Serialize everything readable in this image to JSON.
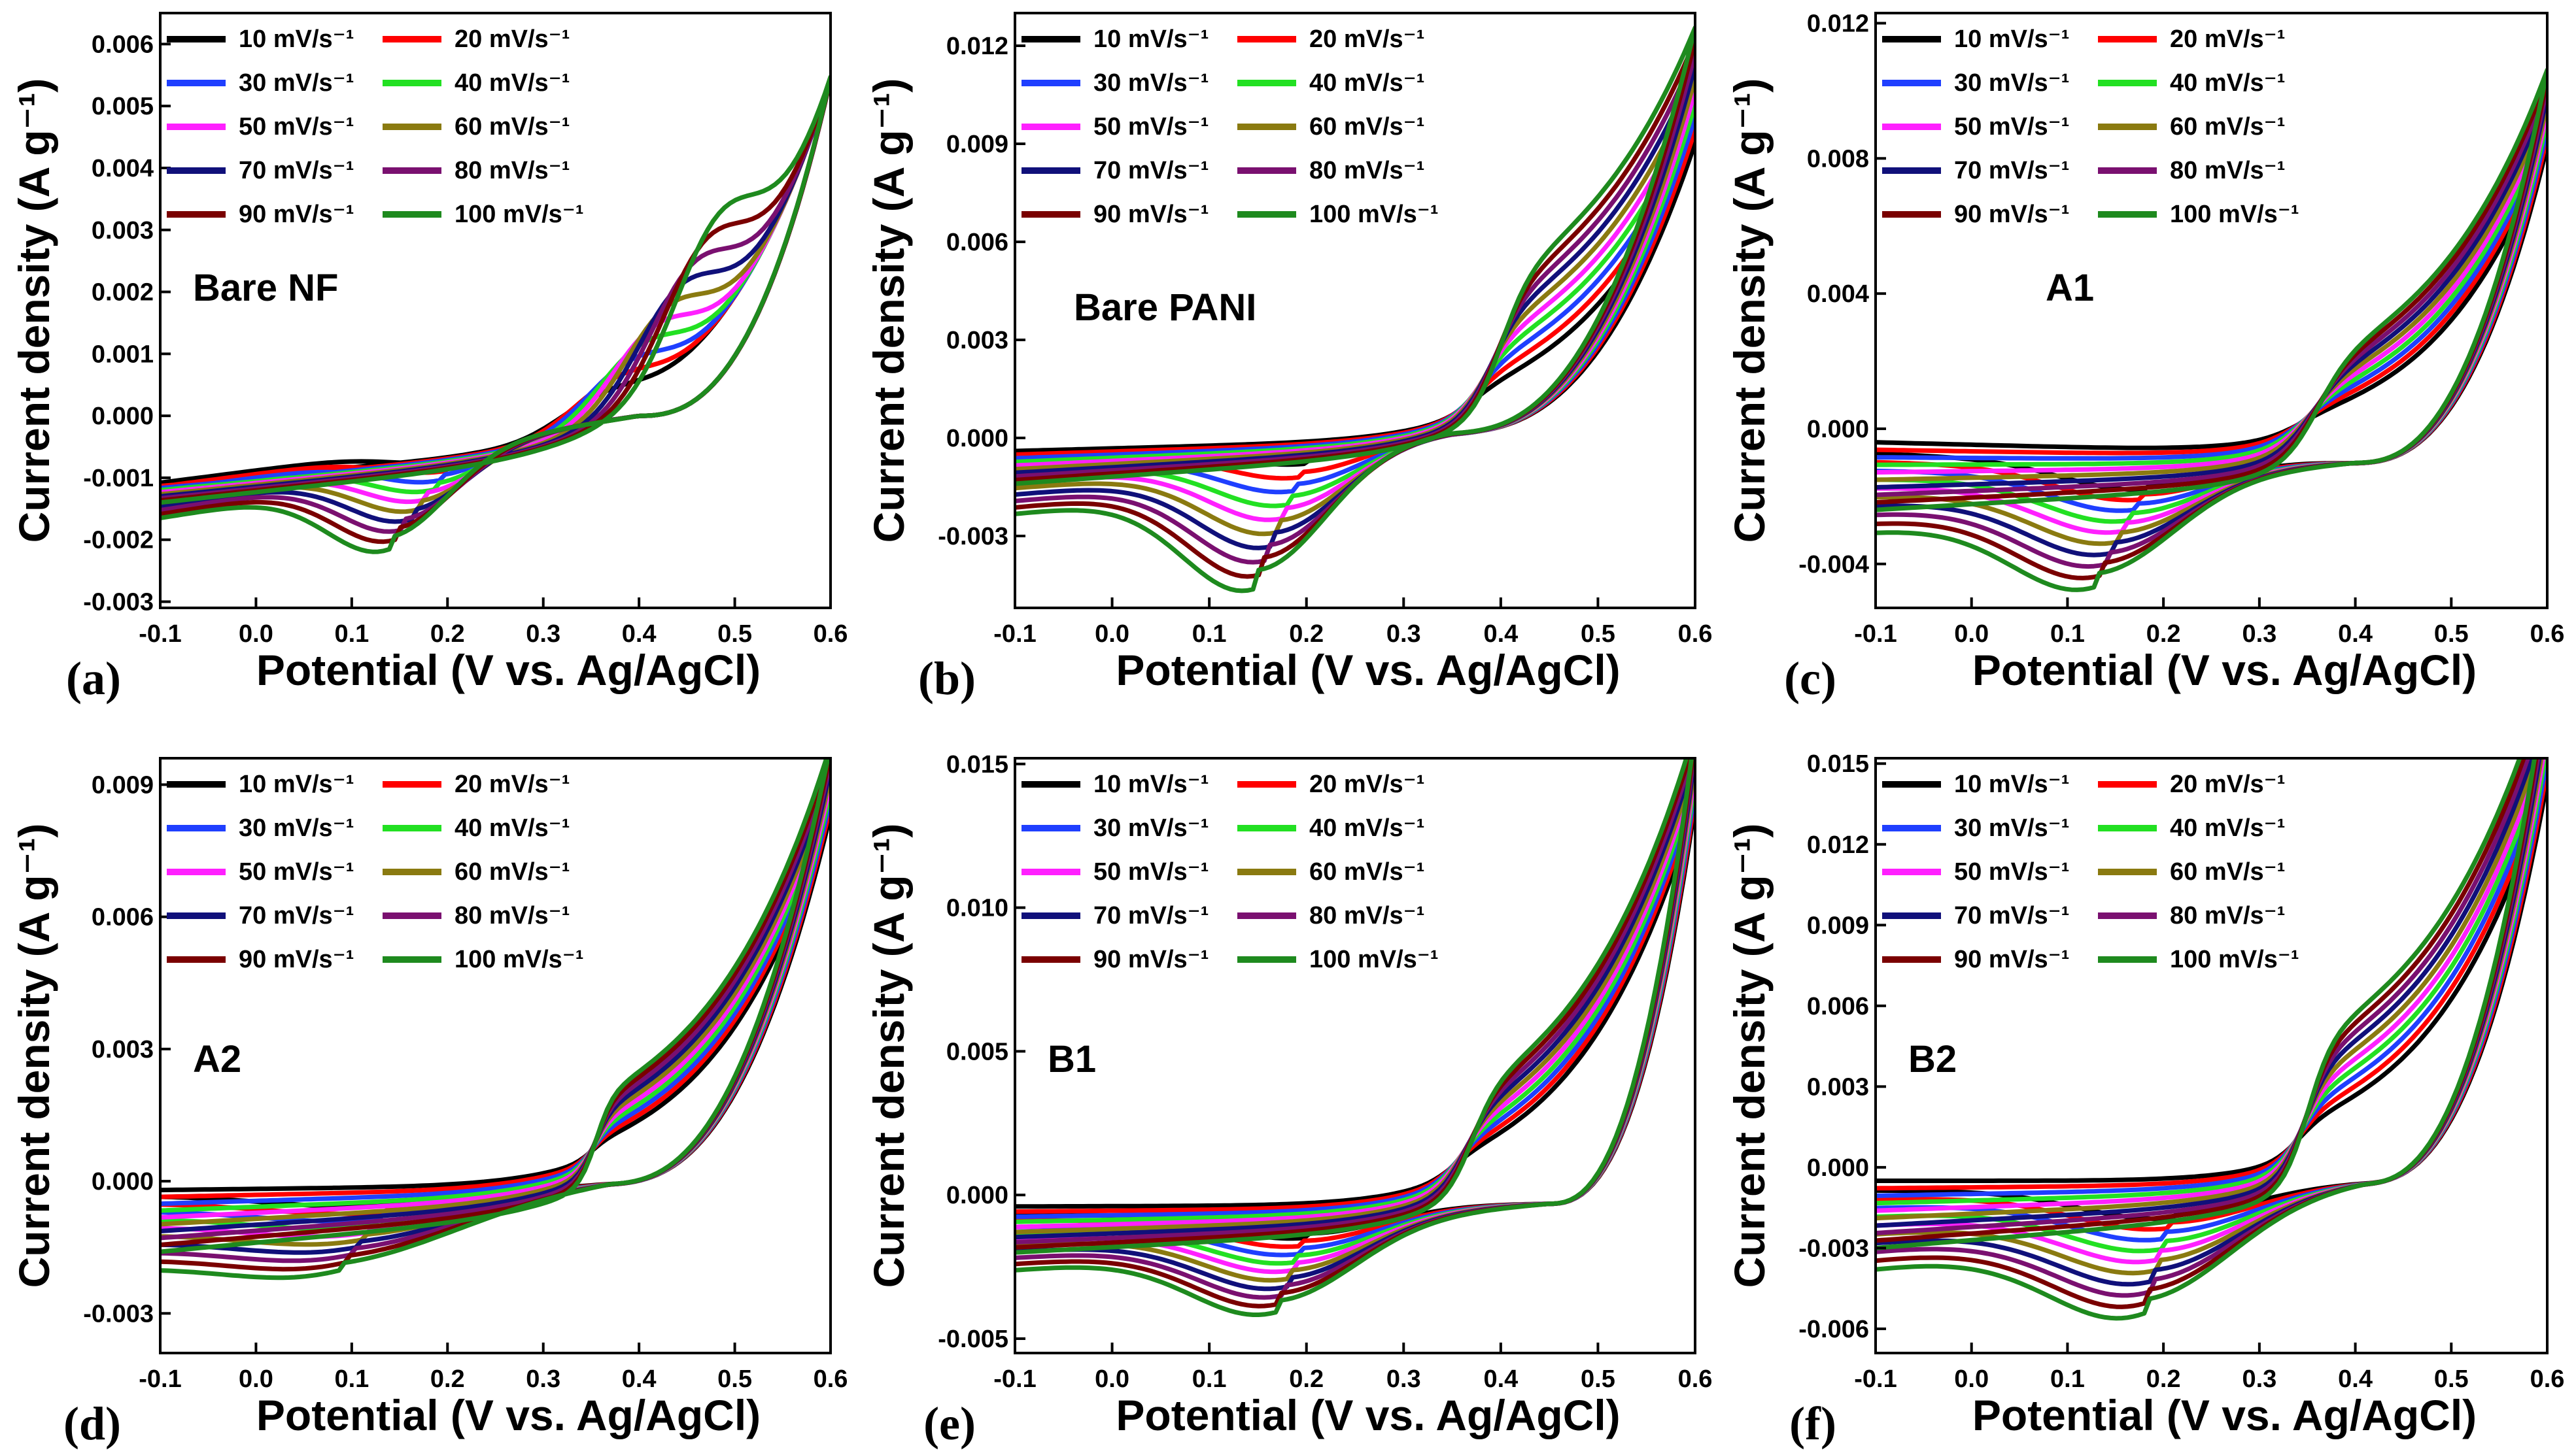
{
  "figure": {
    "xlabel": "Potential (V vs. Ag/AgCl)",
    "ylabel": "Current density (A g⁻¹)",
    "legend_labels": [
      "10 mV/s⁻¹",
      "20 mV/s⁻¹",
      "30 mV/s⁻¹",
      "40 mV/s⁻¹",
      "50 mV/s⁻¹",
      "60 mV/s⁻¹",
      "70 mV/s⁻¹",
      "80 mV/s⁻¹",
      "90 mV/s⁻¹",
      "100 mV/s⁻¹"
    ],
    "series_colors": [
      "#000000",
      "#ff0000",
      "#1f3fff",
      "#22e022",
      "#ff20ff",
      "#8a7a10",
      "#10107a",
      "#7a1070",
      "#7a0000",
      "#1e8a1e"
    ]
  },
  "chart_data": [
    {
      "type": "line",
      "panel_label": "(a)",
      "sample": "Bare NF",
      "xlim": [
        -0.1,
        0.6
      ],
      "xticks": [
        "-0.1",
        "0.0",
        "0.1",
        "0.2",
        "0.3",
        "0.4",
        "0.5",
        "0.6"
      ],
      "ylim": [
        -0.0031,
        0.0065
      ],
      "yticks": [
        "-0.003",
        "-0.002",
        "-0.001",
        "0.000",
        "0.001",
        "0.002",
        "0.003",
        "0.004",
        "0.005",
        "0.006"
      ],
      "ytick_values": [
        -0.003,
        -0.002,
        -0.001,
        0,
        0.001,
        0.002,
        0.003,
        0.004,
        0.005,
        0.006
      ],
      "model": {
        "c_start": -0.0012,
        "c_slope": 0.00021,
        "c_prob": 0.0014,
        "a_end": 0.0062,
        "a_prob": 0.0011,
        "a_base_frac": 0.09,
        "ox_pos": 0.36,
        "ox_shift": 0.12,
        "ox_amp_lo": 0.0004,
        "ox_amp_hi": 0.0018,
        "ox_w": 0.045,
        "ox_shape": "peak",
        "red_pos": 0.21,
        "red_shift": -0.07,
        "red_amp_lo": 0.0003,
        "red_amp_hi": 0.0013,
        "red_w": 0.06,
        "red_shape": "peak",
        "cross": 0.4,
        "cross_val": 0.0,
        "start_lo": -0.0011,
        "start_hi": -0.0014
      }
    },
    {
      "type": "line",
      "panel_label": "(b)",
      "sample": "Bare PANI",
      "xlim": [
        -0.1,
        0.6
      ],
      "xticks": [
        "-0.1",
        "0.0",
        "0.1",
        "0.2",
        "0.3",
        "0.4",
        "0.5",
        "0.6"
      ],
      "ylim": [
        -0.0052,
        0.013
      ],
      "yticks": [
        "-0.003",
        "0.000",
        "0.003",
        "0.006",
        "0.009",
        "0.012"
      ],
      "ytick_values": [
        -0.003,
        0,
        0.003,
        0.006,
        0.009,
        0.012
      ],
      "model": {
        "c_start": -0.001,
        "c_slope": 0.0001,
        "c_prob": 0.0012,
        "a_end": 0.0088,
        "a_prob": 0.0014,
        "a_base_frac": 0.09,
        "ox_pos": 0.37,
        "ox_shift": 0.03,
        "ox_amp_lo": 0.0008,
        "ox_amp_hi": 0.0042,
        "ox_w": 0.035,
        "ox_shape": "plateau",
        "red_pos": 0.2,
        "red_shift": -0.05,
        "red_amp_lo": 0.0007,
        "red_amp_hi": 0.0036,
        "red_w": 0.07,
        "red_shape": "peak",
        "cross": 0.35,
        "cross_val": 0.0002,
        "start_lo": -0.0004,
        "start_hi": -0.0014
      }
    },
    {
      "type": "line",
      "panel_label": "(c)",
      "sample": "A1",
      "xlim": [
        -0.1,
        0.6
      ],
      "xticks": [
        "-0.1",
        "0.0",
        "0.1",
        "0.2",
        "0.3",
        "0.4",
        "0.5",
        "0.6"
      ],
      "ylim": [
        -0.0053,
        0.0123
      ],
      "yticks": [
        "-0.004",
        "0.000",
        "0.004",
        "0.008",
        "0.012"
      ],
      "ytick_values": [
        -0.004,
        0,
        0.004,
        0.008,
        0.012
      ],
      "model": {
        "c_start": -0.0012,
        "c_slope": 0.0003,
        "c_prob": 0.0015,
        "a_end": 0.0098,
        "a_prob": 0.0016,
        "a_base_frac": 0.12,
        "ox_pos": 0.34,
        "ox_shift": 0.02,
        "ox_amp_lo": 0.0006,
        "ox_amp_hi": 0.003,
        "ox_w": 0.04,
        "ox_shape": "plateau",
        "red_pos": 0.18,
        "red_shift": -0.05,
        "red_amp_lo": 0.0009,
        "red_amp_hi": 0.0026,
        "red_w": 0.08,
        "red_shape": "peak",
        "cross": 0.4,
        "cross_val": -0.001,
        "start_lo": -0.0004,
        "start_hi": -0.0024
      }
    },
    {
      "type": "line",
      "panel_label": "(d)",
      "sample": "A2",
      "xlim": [
        -0.1,
        0.6
      ],
      "xticks": [
        "-0.1",
        "0.0",
        "0.1",
        "0.2",
        "0.3",
        "0.4",
        "0.5",
        "0.6"
      ],
      "ylim": [
        -0.0039,
        0.0096
      ],
      "yticks": [
        "-0.003",
        "0.000",
        "0.003",
        "0.006",
        "0.009"
      ],
      "ytick_values": [
        -0.003,
        0,
        0.003,
        0.006,
        0.009
      ],
      "model": {
        "c_start": -0.001,
        "c_slope": 0.0002,
        "c_prob": 0.001,
        "a_end": 0.009,
        "a_prob": 0.0014,
        "a_base_frac": 0.12,
        "ox_pos": 0.35,
        "ox_shift": 0.005,
        "ox_amp_lo": 0.0004,
        "ox_amp_hi": 0.002,
        "ox_w": 0.02,
        "ox_shape": "plateau",
        "red_pos": 0.14,
        "red_shift": -0.05,
        "red_amp_lo": 0.0004,
        "red_amp_hi": 0.001,
        "red_w": 0.12,
        "red_shape": "peak",
        "cross": 0.37,
        "cross_val": 0.0,
        "start_lo": -0.0002,
        "start_hi": -0.0016
      }
    },
    {
      "type": "line",
      "panel_label": "(e)",
      "sample": "B1",
      "xlim": [
        -0.1,
        0.6
      ],
      "xticks": [
        "-0.1",
        "0.0",
        "0.1",
        "0.2",
        "0.3",
        "0.4",
        "0.5",
        "0.6"
      ],
      "ylim": [
        -0.0055,
        0.0152
      ],
      "yticks": [
        "-0.005",
        "0.000",
        "0.005",
        "0.010",
        "0.015"
      ],
      "ytick_values": [
        -0.005,
        0,
        0.005,
        0.01,
        0.015
      ],
      "model": {
        "c_start": -0.0012,
        "c_slope": 0.0004,
        "c_prob": 0.0018,
        "a_end": 0.0145,
        "a_prob": 0.0015,
        "a_base_frac": 0.1,
        "ox_pos": 0.35,
        "ox_shift": 0.02,
        "ox_amp_lo": 0.0008,
        "ox_amp_hi": 0.0036,
        "ox_w": 0.03,
        "ox_shape": "plateau",
        "red_pos": 0.2,
        "red_shift": -0.03,
        "red_amp_lo": 0.001,
        "red_amp_hi": 0.0026,
        "red_w": 0.08,
        "red_shape": "peak",
        "cross": 0.45,
        "cross_val": -0.0003,
        "start_lo": -0.0004,
        "start_hi": -0.002
      }
    },
    {
      "type": "line",
      "panel_label": "(f)",
      "sample": "B2",
      "xlim": [
        -0.1,
        0.6
      ],
      "xticks": [
        "-0.1",
        "0.0",
        "0.1",
        "0.2",
        "0.3",
        "0.4",
        "0.5",
        "0.6"
      ],
      "ylim": [
        -0.0069,
        0.0152
      ],
      "yticks": [
        "-0.006",
        "-0.003",
        "0.000",
        "0.003",
        "0.006",
        "0.009",
        "0.012",
        "0.015"
      ],
      "ytick_values": [
        -0.006,
        -0.003,
        0,
        0.003,
        0.006,
        0.009,
        0.012,
        0.015
      ],
      "model": {
        "c_start": -0.0015,
        "c_slope": 0.0004,
        "c_prob": 0.002,
        "a_end": 0.0148,
        "a_prob": 0.0016,
        "a_base_frac": 0.1,
        "ox_pos": 0.34,
        "ox_shift": 0.01,
        "ox_amp_lo": 0.0014,
        "ox_amp_hi": 0.0055,
        "ox_w": 0.03,
        "ox_shape": "plateau",
        "red_pos": 0.21,
        "red_shift": -0.03,
        "red_amp_lo": 0.0012,
        "red_amp_hi": 0.0034,
        "red_w": 0.09,
        "red_shape": "peak",
        "cross": 0.41,
        "cross_val": -0.0005,
        "start_lo": -0.0005,
        "start_hi": -0.003
      }
    }
  ]
}
